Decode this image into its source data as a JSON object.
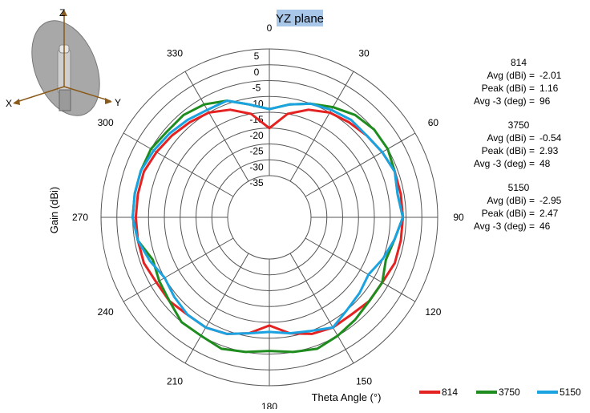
{
  "chart_data": {
    "type": "polar-line",
    "title": "YZ plane",
    "xlabel": "Theta  Angle (°)",
    "ylabel": "Gain  (dBi)",
    "rlim": [
      -35,
      5
    ],
    "radial_ticks": [
      5,
      0,
      -5,
      -10,
      -15,
      -20,
      -25,
      -30,
      -35
    ],
    "angle_ticks": [
      0,
      30,
      60,
      90,
      120,
      150,
      180,
      210,
      240,
      270,
      300,
      330
    ],
    "grid": true,
    "legend_position": "bottom-right",
    "inset_axes": [
      "Z",
      "X",
      "Y"
    ],
    "series": [
      {
        "name": "814",
        "color": "#e52222",
        "angles": [
          0,
          10,
          20,
          30,
          40,
          50,
          60,
          70,
          80,
          90,
          100,
          110,
          120,
          130,
          140,
          150,
          160,
          170,
          180,
          190,
          200,
          210,
          220,
          230,
          240,
          250,
          260,
          270,
          280,
          290,
          300,
          310,
          320,
          330,
          340,
          350
        ],
        "values": [
          -20,
          -15,
          -12,
          -10,
          -9,
          -8,
          -7,
          -6,
          -6,
          -6,
          -6,
          -6,
          -7,
          -7,
          -8,
          -8,
          -9,
          -11,
          -14,
          -11,
          -9,
          -8,
          -8,
          -7,
          -7,
          -6,
          -6,
          -6,
          -6,
          -6,
          -7,
          -8,
          -9,
          -10,
          -12,
          -15
        ],
        "stats": {
          "avg_label": "Avg (dBi) =",
          "avg": "-2.01",
          "peak_label": "Peak (dBi) =",
          "peak": "1.16",
          "bw_label": "Avg -3 (deg) =",
          "bw": "96"
        }
      },
      {
        "name": "3750",
        "color": "#1e8c1e",
        "angles": [
          0,
          10,
          20,
          30,
          40,
          50,
          60,
          70,
          80,
          90,
          100,
          110,
          120,
          130,
          140,
          150,
          160,
          170,
          180,
          190,
          200,
          210,
          220,
          230,
          240,
          250,
          260,
          270,
          280,
          290,
          300,
          310,
          320,
          330,
          340,
          350
        ],
        "values": [
          -14,
          -12,
          -10,
          -8,
          -6,
          -5,
          -5,
          -6,
          -7,
          -6,
          -8,
          -9,
          -7,
          -7,
          -6,
          -5,
          -4,
          -5,
          -6,
          -5,
          -4,
          -5,
          -5,
          -7,
          -8,
          -9,
          -6,
          -5,
          -5,
          -5,
          -5,
          -6,
          -6,
          -7,
          -9,
          -12
        ],
        "stats": {
          "avg_label": "Avg (dBi) =",
          "avg": "-0.54",
          "peak_label": "Peak (dBi) =",
          "peak": "2.93",
          "bw_label": "Avg -3 (deg) =",
          "bw": "48"
        }
      },
      {
        "name": "5150",
        "color": "#1aa3e0",
        "angles": [
          0,
          10,
          20,
          30,
          40,
          50,
          60,
          70,
          80,
          90,
          100,
          110,
          120,
          130,
          140,
          150,
          160,
          170,
          180,
          190,
          200,
          210,
          220,
          230,
          240,
          250,
          260,
          270,
          280,
          290,
          300,
          310,
          320,
          330,
          340,
          350
        ],
        "values": [
          -14,
          -12,
          -10,
          -9,
          -8,
          -8,
          -7,
          -6,
          -7,
          -6,
          -8,
          -10,
          -12,
          -11,
          -10,
          -8,
          -10,
          -11,
          -12,
          -11,
          -9,
          -8,
          -8,
          -9,
          -10,
          -8,
          -6,
          -5,
          -5,
          -5,
          -6,
          -7,
          -8,
          -9,
          -9,
          -12
        ],
        "stats": {
          "avg_label": "Avg (dBi) =",
          "avg": "-2.95",
          "peak_label": "Peak (dBi) =",
          "peak": "2.47",
          "bw_label": "Avg -3 (deg) =",
          "bw": "46"
        }
      }
    ]
  }
}
